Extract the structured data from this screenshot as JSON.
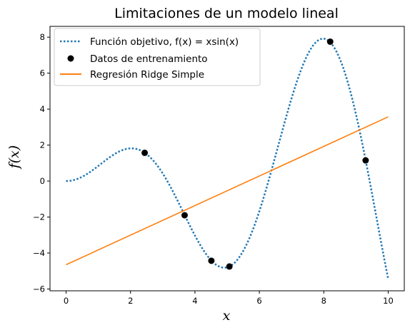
{
  "chart_data": {
    "type": "line",
    "title": "Limitaciones de un modelo lineal",
    "xlabel": "x",
    "ylabel": "f(x)",
    "xlim": [
      -0.5,
      10.5
    ],
    "ylim": [
      -6.1,
      8.6
    ],
    "xticks": [
      0,
      2,
      4,
      6,
      8,
      10
    ],
    "yticks": [
      -6,
      -4,
      -2,
      0,
      2,
      4,
      6,
      8
    ],
    "xtick_labels": [
      "0",
      "2",
      "4",
      "6",
      "8",
      "10"
    ],
    "ytick_labels": [
      "−6",
      "−4",
      "−2",
      "0",
      "2",
      "4",
      "6",
      "8"
    ],
    "grid": false,
    "legend_position": "top-left",
    "legend": [
      {
        "label": "Función objetivo, f(x) = xsin(x)",
        "style": "dotted",
        "color": "#1f77b4"
      },
      {
        "label": "Datos de entrenamiento",
        "style": "marker",
        "color": "#000000"
      },
      {
        "label": "Regresión Ridge Simple",
        "style": "solid",
        "color": "#ff7f0e"
      }
    ],
    "series": [
      {
        "name": "Función objetivo, f(x) = xsin(x)",
        "kind": "function",
        "expression": "x*sin(x)",
        "x_range": [
          0,
          10
        ],
        "color": "#1f77b4",
        "style": "dotted"
      },
      {
        "name": "Datos de entrenamiento",
        "kind": "scatter",
        "color": "#000000",
        "points": [
          {
            "x": 2.44,
            "y": 1.57
          },
          {
            "x": 3.68,
            "y": -1.9
          },
          {
            "x": 4.51,
            "y": -4.43
          },
          {
            "x": 5.07,
            "y": -4.75
          },
          {
            "x": 8.2,
            "y": 7.75
          },
          {
            "x": 9.3,
            "y": 1.15
          }
        ]
      },
      {
        "name": "Regresión Ridge Simple",
        "kind": "line",
        "color": "#ff7f0e",
        "style": "solid",
        "points": [
          {
            "x": 0,
            "y": -4.65
          },
          {
            "x": 10,
            "y": 3.57
          }
        ]
      }
    ]
  }
}
